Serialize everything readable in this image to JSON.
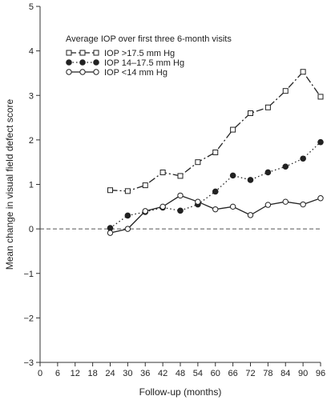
{
  "chart_data": {
    "type": "line",
    "xlabel": "Follow-up (months)",
    "ylabel": "Mean change in visual field defect score",
    "xlim": [
      0,
      96
    ],
    "ylim": [
      -3,
      5
    ],
    "xticks": [
      0,
      6,
      12,
      18,
      24,
      30,
      36,
      42,
      48,
      54,
      60,
      66,
      72,
      78,
      84,
      90,
      96
    ],
    "yticks": [
      -3,
      -2,
      -1,
      0,
      1,
      2,
      3,
      4,
      5
    ],
    "reference_line_y": 0,
    "legend": {
      "title": "Average IOP over first three 6-month visits",
      "placement": "top-left"
    },
    "x": [
      24,
      30,
      36,
      42,
      48,
      54,
      60,
      66,
      72,
      78,
      84,
      90,
      96
    ],
    "series": [
      {
        "name": "IOP >17.5 mm Hg",
        "marker": "open-square",
        "line_style": "dash-dot",
        "values": [
          0.87,
          0.85,
          0.98,
          1.27,
          1.19,
          1.5,
          1.72,
          2.23,
          2.6,
          2.73,
          3.1,
          3.53,
          2.97
        ]
      },
      {
        "name": "IOP 14–17.5 mm Hg",
        "marker": "filled-circle",
        "line_style": "dotted",
        "values": [
          0.02,
          0.3,
          0.38,
          0.48,
          0.41,
          0.55,
          0.84,
          1.2,
          1.1,
          1.27,
          1.4,
          1.58,
          1.95
        ]
      },
      {
        "name": "IOP <14 mm Hg",
        "marker": "open-circle",
        "line_style": "solid",
        "values": [
          -0.09,
          0.0,
          0.4,
          0.5,
          0.75,
          0.61,
          0.44,
          0.5,
          0.31,
          0.54,
          0.61,
          0.55,
          0.69
        ]
      }
    ]
  }
}
